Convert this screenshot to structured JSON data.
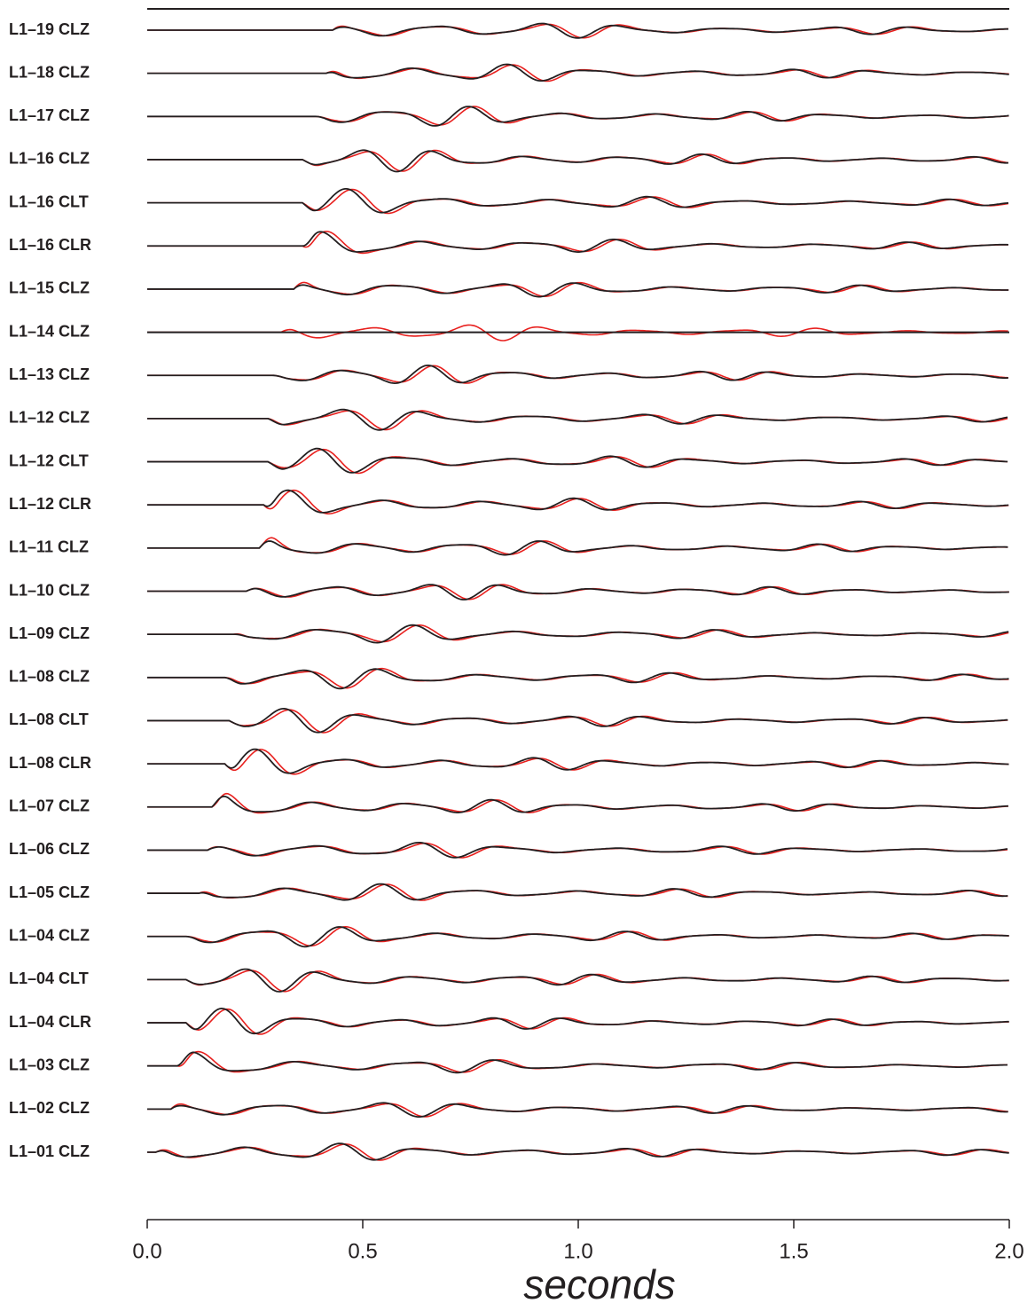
{
  "chart_data": {
    "type": "seismogram",
    "x_label": "seconds",
    "categories": [
      "L1–19 CLZ",
      "L1–18 CLZ",
      "L1–17 CLZ",
      "L1–16 CLZ",
      "L1–16 CLT",
      "L1–16 CLR",
      "L1–15 CLZ",
      "L1–14 CLZ",
      "L1–13 CLZ",
      "L1–12 CLZ",
      "L1–12 CLT",
      "L1–12 CLR",
      "L1–11 CLZ",
      "L1–10 CLZ",
      "L1–09 CLZ",
      "L1–08 CLZ",
      "L1–08 CLT",
      "L1–08 CLR",
      "L1–07 CLZ",
      "L1–06 CLZ",
      "L1–05 CLZ",
      "L1–04 CLZ",
      "L1–04 CLT",
      "L1–04 CLR",
      "L1–03 CLZ",
      "L1–02 CLZ",
      "L1–01 CLZ"
    ],
    "series": [
      {
        "color": "#e8201e",
        "values": [
          0.43,
          0.415,
          0.39,
          0.36,
          0.36,
          0.36,
          0.34,
          0.31,
          0.29,
          0.28,
          0.28,
          0.27,
          0.26,
          0.23,
          0.2,
          0.18,
          0.19,
          0.18,
          0.15,
          0.14,
          0.12,
          0.09,
          0.09,
          0.09,
          0.07,
          0.055,
          0.02
        ]
      },
      {
        "color": "#231f20",
        "values": [
          0.43,
          0.415,
          0.39,
          0.36,
          0.36,
          0.36,
          0.34,
          null,
          0.29,
          0.28,
          0.28,
          0.27,
          0.26,
          0.23,
          0.2,
          0.18,
          0.19,
          0.18,
          0.15,
          0.14,
          0.12,
          0.09,
          0.09,
          0.09,
          0.07,
          0.055,
          0.02
        ]
      }
    ],
    "xlim": [
      0,
      2
    ],
    "xticks": [
      {
        "value": 0,
        "label": "0.0"
      },
      {
        "value": 0.5,
        "label": "0.5"
      },
      {
        "value": 1,
        "label": "1.0"
      },
      {
        "value": 1.5,
        "label": "1.5"
      },
      {
        "value": 2,
        "label": "2.0"
      }
    ]
  }
}
